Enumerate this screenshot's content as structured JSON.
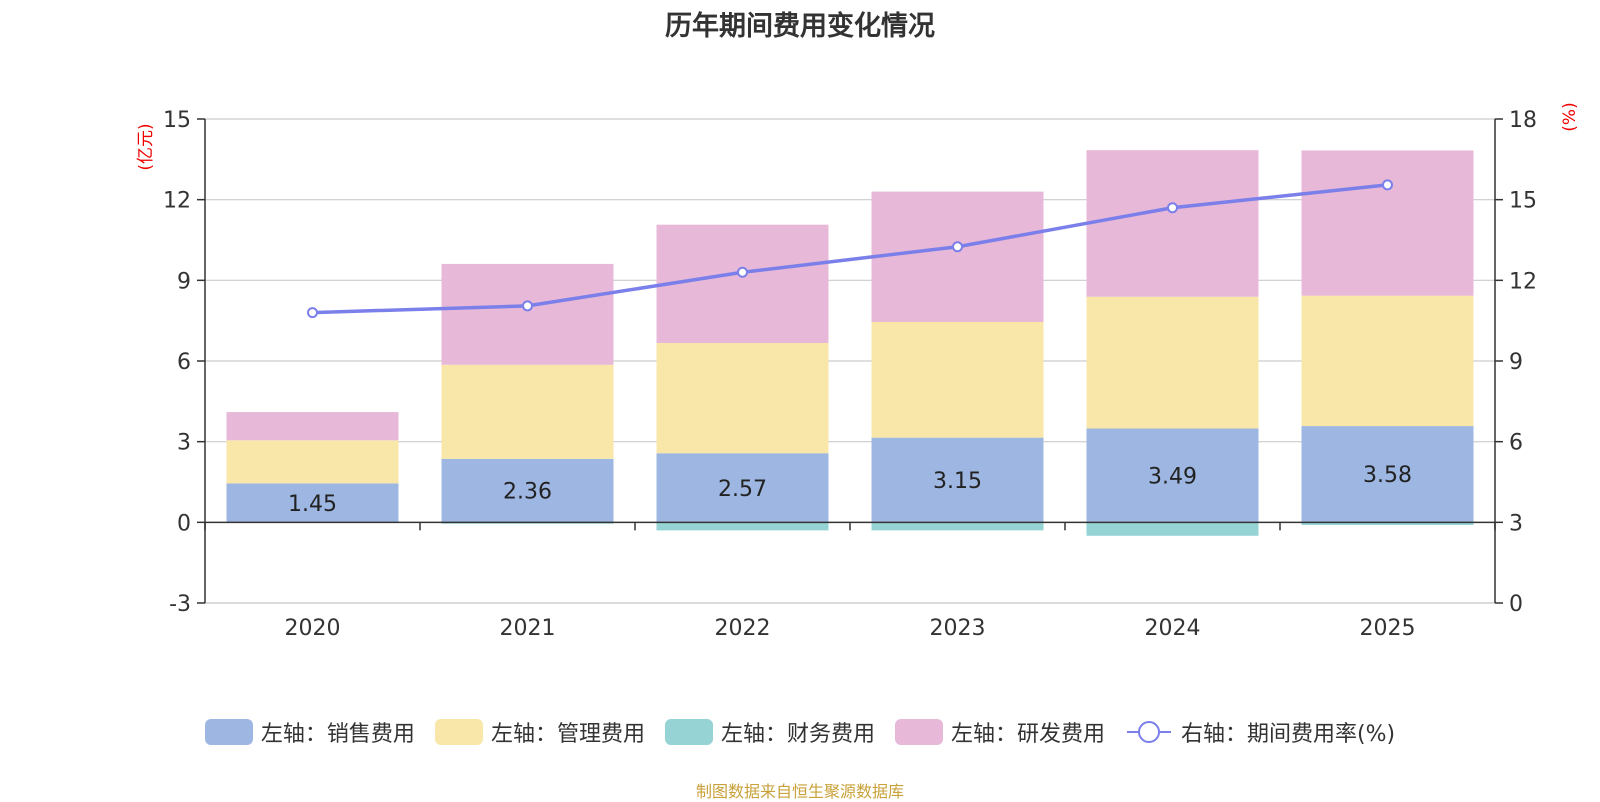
{
  "chart_data": {
    "type": "bar",
    "title": "历年期间费用变化情况",
    "categories": [
      "2020",
      "2021",
      "2022",
      "2023",
      "2024",
      "2025"
    ],
    "left_axis": {
      "unit_label": "(亿元)",
      "ylim": [
        -3,
        15
      ],
      "ticks": [
        -3,
        0,
        3,
        6,
        9,
        12,
        15
      ]
    },
    "right_axis": {
      "unit_label": "(%)",
      "ylim": [
        0,
        18
      ],
      "ticks": [
        0,
        3,
        6,
        9,
        12,
        15,
        18
      ]
    },
    "series": [
      {
        "name": "左轴：销售费用",
        "axis": "left",
        "stack": true,
        "color": "#9db7e2",
        "values": [
          1.45,
          2.36,
          2.57,
          3.15,
          3.49,
          3.58
        ],
        "data_labels": [
          "1.45",
          "2.36",
          "2.57",
          "3.15",
          "3.49",
          "3.58"
        ]
      },
      {
        "name": "左轴：管理费用",
        "axis": "left",
        "stack": true,
        "color": "#f8e7a8",
        "values": [
          1.6,
          3.5,
          4.1,
          4.3,
          4.9,
          4.85
        ]
      },
      {
        "name": "左轴：财务费用",
        "axis": "left",
        "stack": true,
        "color": "#96d3d5",
        "values": [
          -0.02,
          -0.05,
          -0.3,
          -0.3,
          -0.5,
          -0.1
        ]
      },
      {
        "name": "左轴：研发费用",
        "axis": "left",
        "stack": true,
        "color": "#e7b8d8",
        "values": [
          1.05,
          3.75,
          4.4,
          4.85,
          5.45,
          5.4
        ]
      },
      {
        "name": "右轴：期间费用率(%)",
        "axis": "right",
        "type": "line",
        "color": "#7b7fea",
        "values": [
          10.8,
          11.05,
          12.3,
          13.25,
          14.7,
          15.55
        ]
      }
    ]
  },
  "source_note": "制图数据来自恒生聚源数据库"
}
